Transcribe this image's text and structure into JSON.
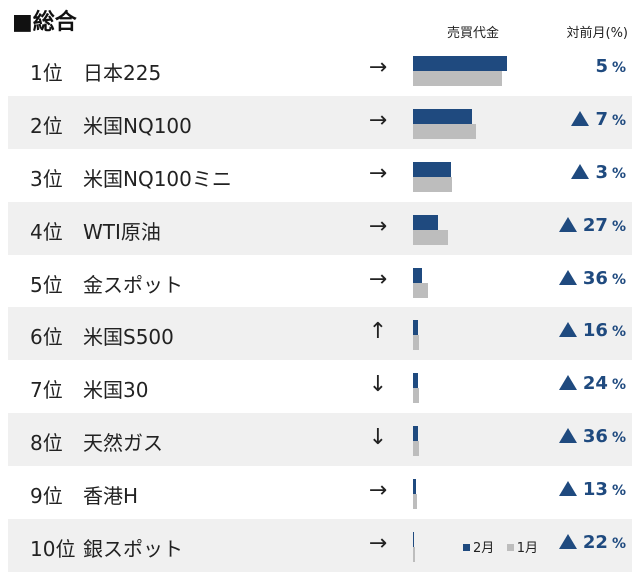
{
  "title": "■総合",
  "headers": {
    "volume": "売買代金",
    "change": "対前月(%)"
  },
  "colors": {
    "feb": "#1f4a7f",
    "jan": "#bdbdbd",
    "accent": "#1f4a7f"
  },
  "legend": {
    "feb": "2月",
    "jan": "1月"
  },
  "rows": [
    {
      "rank": "1位",
      "name": "日本225",
      "arrow": "→",
      "feb": 100,
      "jan": 95,
      "up": false,
      "change": "5",
      "pct": "%"
    },
    {
      "rank": "2位",
      "name": "米国NQ100",
      "arrow": "→",
      "feb": 63,
      "jan": 67,
      "up": true,
      "change": "7",
      "pct": "%"
    },
    {
      "rank": "3位",
      "name": "米国NQ100ミニ",
      "arrow": "→",
      "feb": 40,
      "jan": 41,
      "up": true,
      "change": "3",
      "pct": "%"
    },
    {
      "rank": "4位",
      "name": "WTI原油",
      "arrow": "→",
      "feb": 27,
      "jan": 37,
      "up": true,
      "change": "27",
      "pct": "%"
    },
    {
      "rank": "5位",
      "name": "金スポット",
      "arrow": "→",
      "feb": 10,
      "jan": 16,
      "up": true,
      "change": "36",
      "pct": "%"
    },
    {
      "rank": "6位",
      "name": "米国S500",
      "arrow": "↑",
      "feb": 5.5,
      "jan": 6.5,
      "up": true,
      "change": "16",
      "pct": "%"
    },
    {
      "rank": "7位",
      "name": "米国30",
      "arrow": "↓",
      "feb": 5.5,
      "jan": 6.5,
      "up": true,
      "change": "24",
      "pct": "%"
    },
    {
      "rank": "8位",
      "name": "天然ガス",
      "arrow": "↓",
      "feb": 5.5,
      "jan": 6.5,
      "up": true,
      "change": "36",
      "pct": "%"
    },
    {
      "rank": "9位",
      "name": "香港H",
      "arrow": "→",
      "feb": 3.5,
      "jan": 4.5,
      "up": true,
      "change": "13",
      "pct": "%"
    },
    {
      "rank": "10位",
      "name": "銀スポット",
      "arrow": "→",
      "feb": 1,
      "jan": 2,
      "up": true,
      "change": "22",
      "pct": "%"
    }
  ]
}
